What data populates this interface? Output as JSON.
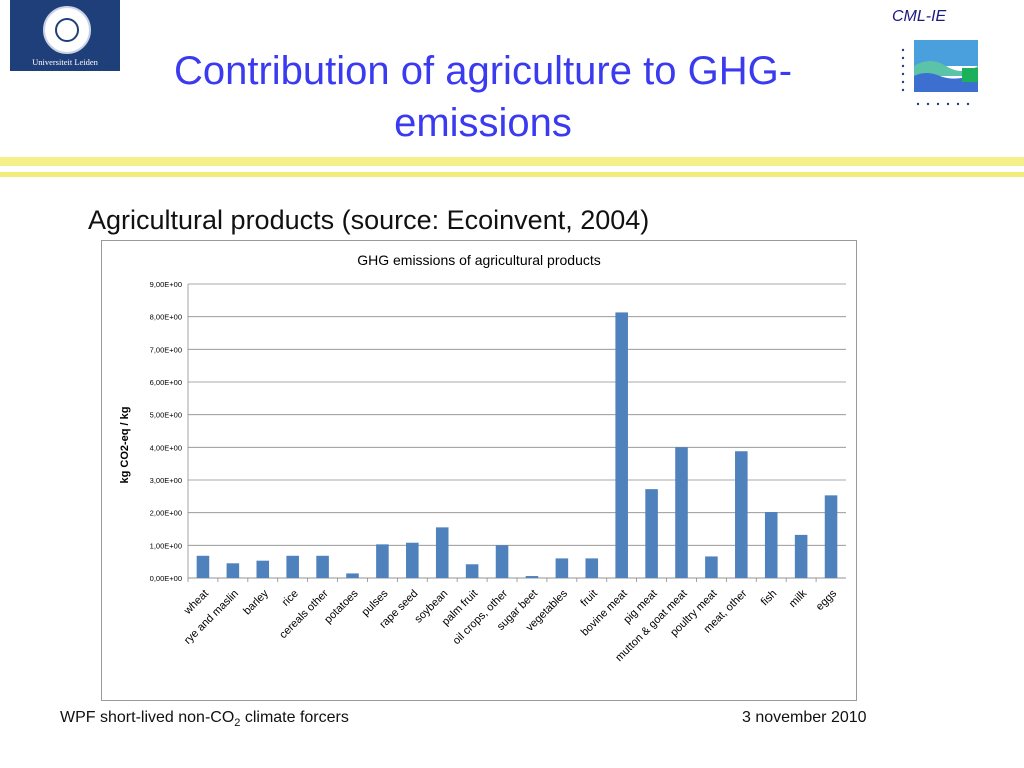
{
  "slide": {
    "title": "Contribution of agriculture to GHG-emissions",
    "subtitle": "Agricultural products (source: Ecoinvent, 2004)",
    "university_logo_label": "Universiteit Leiden",
    "cml_label": "CML-IE",
    "footer_left_prefix": "WPF short-lived non-CO",
    "footer_left_sub": "2",
    "footer_left_suffix": " climate forcers",
    "footer_right": "3 november 2010"
  },
  "chart_data": {
    "type": "bar",
    "title": "GHG emissions of agricultural products",
    "ylabel": "kg CO2-eq / kg",
    "xlabel": "",
    "ylim": [
      0,
      9
    ],
    "yticks": [
      0,
      1,
      2,
      3,
      4,
      5,
      6,
      7,
      8,
      9
    ],
    "ytick_labels": [
      "0,00E+00",
      "1,00E+00",
      "2,00E+00",
      "3,00E+00",
      "4,00E+00",
      "5,00E+00",
      "6,00E+00",
      "7,00E+00",
      "8,00E+00",
      "9,00E+00"
    ],
    "grid": true,
    "legend": "none",
    "bar_color": "#4f81bd",
    "categories": [
      "wheat",
      "rye and maslin",
      "barley",
      "rice",
      "cereals other",
      "potatoes",
      "pulses",
      "rape seed",
      "soybean",
      "palm fruit",
      "oil crops, other",
      "sugar beet",
      "vegetables",
      "fruit",
      "bovine meat",
      "pig meat",
      "mutton & goat meat",
      "poultry meat",
      "meat, other",
      "fish",
      "milk",
      "eggs"
    ],
    "values": [
      0.68,
      0.45,
      0.53,
      0.68,
      0.68,
      0.14,
      1.03,
      1.08,
      1.55,
      0.42,
      1.0,
      0.06,
      0.6,
      0.6,
      8.13,
      2.72,
      4.0,
      0.66,
      3.88,
      2.02,
      1.32,
      2.53
    ]
  },
  "colors": {
    "title": "#3a3af0",
    "band": "#f6f08a",
    "logo_navy": "#1f3f7a"
  }
}
